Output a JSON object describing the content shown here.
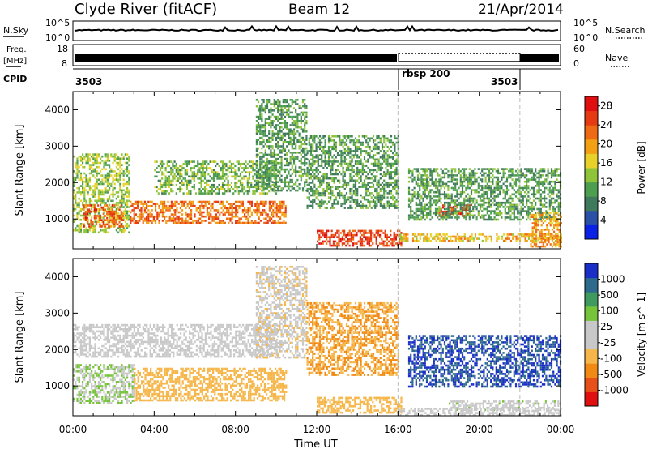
{
  "header": {
    "station": "Clyde River (fitACF)",
    "beam": "Beam 12",
    "date": "21/Apr/2014"
  },
  "panel_labels": {
    "nsky": "N.Sky",
    "nsearch": "N.Search",
    "freq_line1": "Freq.",
    "freq_line2": "[MHz]",
    "nave": "Nave",
    "cpid": "CPID"
  },
  "noise_axis": {
    "left_top": "10^5",
    "left_bottom": "10^0",
    "right_top": "10^5",
    "right_bottom": "10^0"
  },
  "freq_axis": {
    "left_top": "18",
    "left_bottom": "8",
    "right_top": "60",
    "right_bottom": "0"
  },
  "cpid_labels": {
    "start": "3503",
    "mode": "rbsp 200",
    "end": "3503"
  },
  "time_axis": {
    "label": "Time UT",
    "ticks": [
      "00:00",
      "04:00",
      "08:00",
      "12:00",
      "16:00",
      "20:00",
      "00:00"
    ]
  },
  "colors": {
    "power_scale": [
      "#0b22e6",
      "#2a50a8",
      "#3f7a5c",
      "#4e9e50",
      "#8fc43a",
      "#e8d22a",
      "#f2a014",
      "#ef6a14",
      "#e63a12",
      "#e01010"
    ],
    "velocity_scale": [
      "#e01010",
      "#e8501a",
      "#f08a14",
      "#f6b64a",
      "#c8c8c8",
      "#c8c8c8",
      "#76c43a",
      "#3f9a60",
      "#2d6a8c",
      "#1a2ec8"
    ]
  },
  "chart_data": [
    {
      "type": "heatmap",
      "name_panel": "power",
      "ylabel": "Slant Range [km]",
      "yticks": [
        1000,
        2000,
        3000,
        4000
      ],
      "ylim": [
        180,
        4500
      ],
      "xlim": [
        0,
        24
      ],
      "colorbar_label": "Power [dB]",
      "colorbar_ticks": [
        "4",
        "8",
        "12",
        "16",
        "20",
        "24",
        "28"
      ],
      "colorbar_range": [
        0,
        30
      ],
      "mode_change_hours": [
        16.0,
        22.0
      ],
      "regions": [
        {
          "t0": 0.0,
          "t1": 2.8,
          "r0": 600,
          "r1": 2800,
          "level": 14
        },
        {
          "t0": 0.5,
          "t1": 2.5,
          "r0": 800,
          "r1": 1400,
          "level": 24
        },
        {
          "t0": 2.8,
          "t1": 10.5,
          "r0": 900,
          "r1": 1500,
          "level": 22
        },
        {
          "t0": 4.0,
          "t1": 10.0,
          "r0": 1700,
          "r1": 2600,
          "level": 12
        },
        {
          "t0": 9.0,
          "t1": 11.5,
          "r0": 1800,
          "r1": 4300,
          "level": 10
        },
        {
          "t0": 11.5,
          "t1": 16.0,
          "r0": 1300,
          "r1": 3300,
          "level": 10
        },
        {
          "t0": 12.0,
          "t1": 16.2,
          "r0": 250,
          "r1": 700,
          "level": 26
        },
        {
          "t0": 16.0,
          "t1": 24.0,
          "r0": 400,
          "r1": 600,
          "level": 18
        },
        {
          "t0": 18.0,
          "t1": 19.5,
          "r0": 1100,
          "r1": 1400,
          "level": 26
        },
        {
          "t0": 16.5,
          "t1": 24.0,
          "r0": 1000,
          "r1": 2400,
          "level": 10
        },
        {
          "t0": 22.5,
          "t1": 24.0,
          "r0": 250,
          "r1": 1200,
          "level": 20
        }
      ]
    },
    {
      "type": "heatmap",
      "name_panel": "velocity",
      "ylabel": "Slant Range [km]",
      "yticks": [
        1000,
        2000,
        3000,
        4000
      ],
      "ylim": [
        180,
        4500
      ],
      "xlim": [
        0,
        24
      ],
      "colorbar_label": "Velocity [m s^-1]",
      "colorbar_ticks": [
        "1000",
        "500",
        "100",
        "25",
        "-25",
        "-100",
        "-500",
        "-1000"
      ],
      "colorbar_range": [
        -1000,
        1000
      ],
      "mode_change_hours": [
        16.0,
        22.0
      ],
      "regions": [
        {
          "t0": 0.0,
          "t1": 3.0,
          "r0": 500,
          "r1": 1600,
          "level": 200
        },
        {
          "t0": 0.0,
          "t1": 10.0,
          "r0": 1800,
          "r1": 2700,
          "level": 0
        },
        {
          "t0": 3.0,
          "t1": 10.5,
          "r0": 600,
          "r1": 1500,
          "level": -300
        },
        {
          "t0": 9.0,
          "t1": 11.5,
          "r0": 1800,
          "r1": 4300,
          "level": -150
        },
        {
          "t0": 11.5,
          "t1": 16.0,
          "r0": 1300,
          "r1": 3300,
          "level": -400
        },
        {
          "t0": 12.0,
          "t1": 16.2,
          "r0": 250,
          "r1": 700,
          "level": -300
        },
        {
          "t0": 16.5,
          "t1": 24.0,
          "r0": 1000,
          "r1": 2400,
          "level": 800
        },
        {
          "t0": 18.5,
          "t1": 24.0,
          "r0": 350,
          "r1": 600,
          "level": 120
        },
        {
          "t0": 16.0,
          "t1": 24.0,
          "r0": 200,
          "r1": 400,
          "level": 0
        }
      ]
    }
  ]
}
